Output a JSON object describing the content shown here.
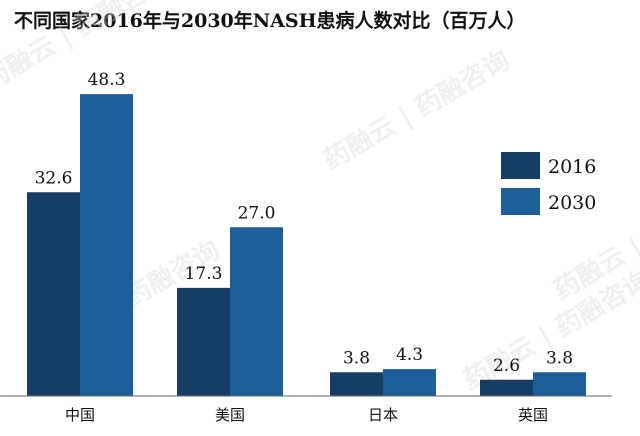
{
  "chart_data": {
    "type": "bar",
    "title": "不同国家2016年与2030年NASH患病人数对比（百万人）",
    "categories": [
      "中国",
      "美国",
      "日本",
      "英国"
    ],
    "series": [
      {
        "name": "2016",
        "values": [
          32.6,
          17.3,
          3.8,
          2.6
        ],
        "color": "#163d66"
      },
      {
        "name": "2030",
        "values": [
          48.3,
          27.0,
          4.3,
          3.8
        ],
        "color": "#1f5f99"
      }
    ],
    "ylim": [
      0,
      55
    ],
    "grid": false,
    "legend_position": "right",
    "watermark": "药融云 | 药融咨询"
  }
}
